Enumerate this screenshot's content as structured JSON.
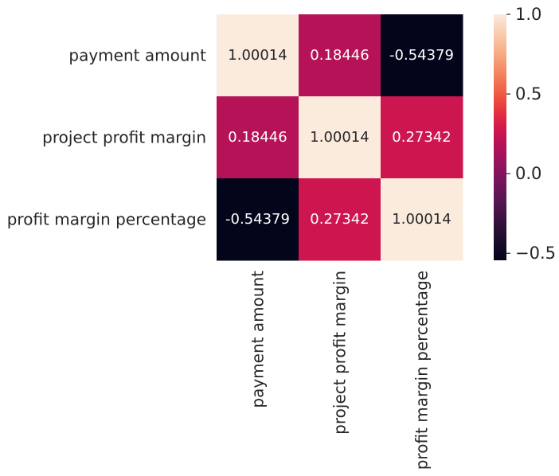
{
  "chart_data": {
    "type": "heatmap",
    "title": "",
    "xlabel": "",
    "ylabel": "",
    "rows": [
      "payment amount",
      "project profit margin",
      "profit margin percentage"
    ],
    "columns": [
      "payment amount",
      "project profit margin",
      "profit margin percentage"
    ],
    "values": [
      [
        1.00014,
        0.18446,
        -0.54379
      ],
      [
        0.18446,
        1.00014,
        0.27342
      ],
      [
        -0.54379,
        0.27342,
        1.00014
      ]
    ],
    "cell_labels": [
      [
        "1.00014",
        "0.18446",
        "-0.54379"
      ],
      [
        "0.18446",
        "1.00014",
        "0.27342"
      ],
      [
        "-0.54379",
        "0.27342",
        "1.00014"
      ]
    ],
    "colormap": "rocket",
    "color_range": [
      -0.54379,
      1.00014
    ],
    "colorbar": {
      "ticks": [
        -0.5,
        0.0,
        0.5,
        1.0
      ],
      "tick_labels": [
        "−0.5",
        "0.0",
        "0.5",
        "1.0"
      ],
      "placement": "right"
    }
  }
}
